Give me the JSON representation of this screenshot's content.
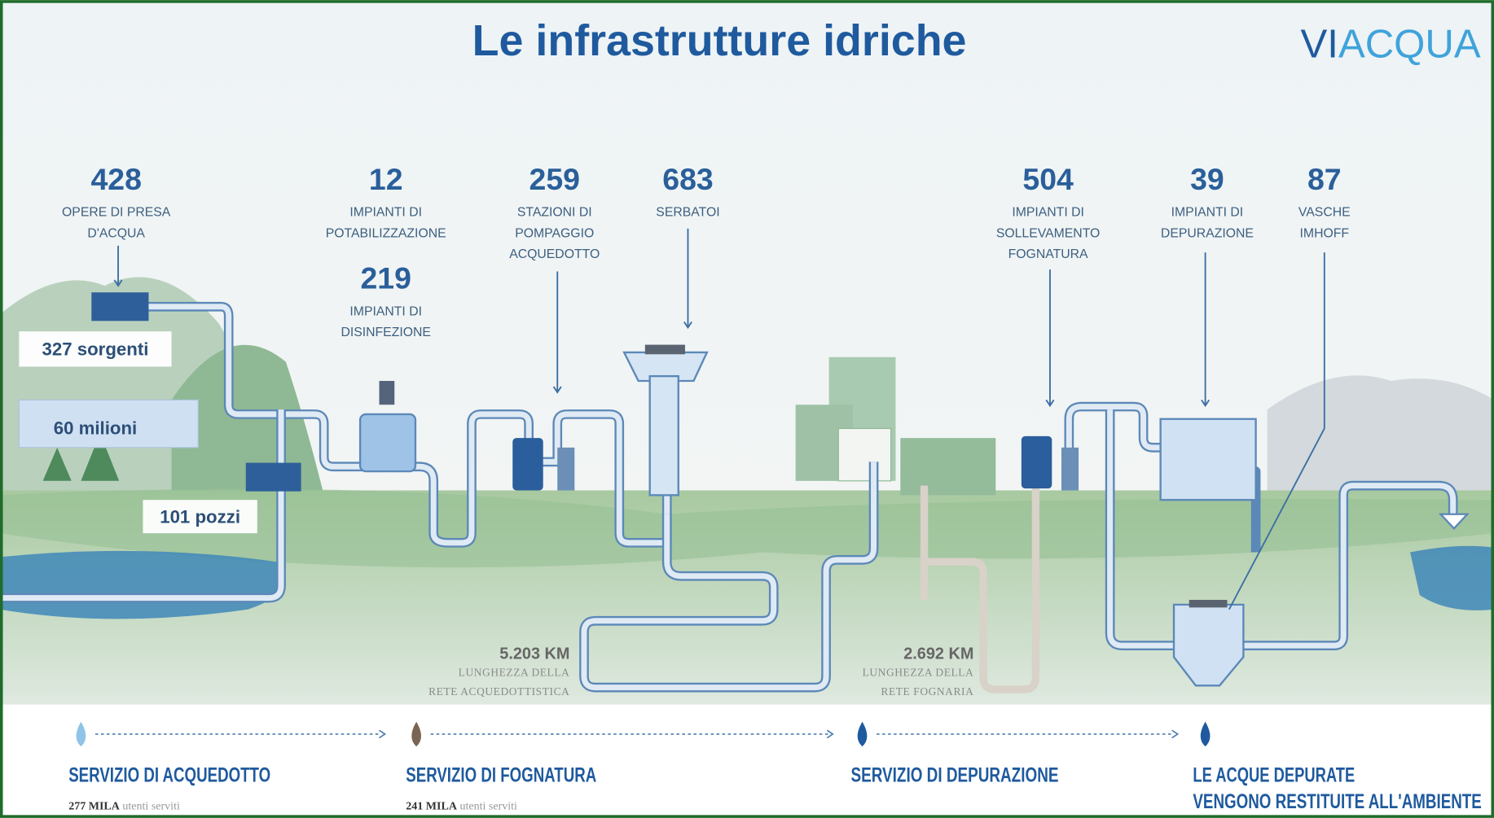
{
  "header": {
    "title": "Le infrastrutture idriche",
    "logo_a": "VI",
    "logo_b": "ACQUA"
  },
  "stats": [
    {
      "value": 428,
      "label": [
        "OPERE DI PRESA",
        "D'ACQUA"
      ]
    },
    {
      "value": 12,
      "label": [
        "IMPIANTI DI",
        "POTABILIZZAZIONE"
      ]
    },
    {
      "value": 219,
      "label": [
        "IMPIANTI DI",
        "DISINFEZIONE"
      ]
    },
    {
      "value": 259,
      "label": [
        "STAZIONI DI",
        "POMPAGGIO",
        "ACQUEDOTTO"
      ]
    },
    {
      "value": 683,
      "label": [
        "SERBATOI"
      ]
    },
    {
      "value": 504,
      "label": [
        "IMPIANTI DI",
        "SOLLEVAMENTO",
        "FOGNATURA"
      ]
    },
    {
      "value": 39,
      "label": [
        "IMPIANTI DI",
        "DEPURAZIONE"
      ]
    },
    {
      "value": 87,
      "label": [
        "VASCHE",
        "IMHOFF"
      ]
    }
  ],
  "callouts": [
    "327 sorgenti",
    "60 milioni",
    "101 pozzi"
  ],
  "networks": [
    {
      "length": "5.203 KM",
      "label": [
        "LUNGHEZZA DELLA",
        "RETE ACQUEDOTTISTICA"
      ]
    },
    {
      "length": "2.692 KM",
      "label": [
        "LUNGHEZZA DELLA",
        "RETE FOGNARIA"
      ]
    }
  ],
  "services": [
    {
      "title": [
        "SERVIZIO DI ACQUEDOTTO"
      ],
      "users": "277 MILA",
      "note": "utenti serviti"
    },
    {
      "title": [
        "SERVIZIO DI FOGNATURA"
      ],
      "users": "241 MILA",
      "note": "utenti serviti"
    },
    {
      "title": [
        "SERVIZIO DI DEPURAZIONE"
      ]
    },
    {
      "title": [
        "LE ACQUE DEPURATE",
        "VENGONO RESTITUITE ALL'AMBIENTE"
      ]
    }
  ]
}
